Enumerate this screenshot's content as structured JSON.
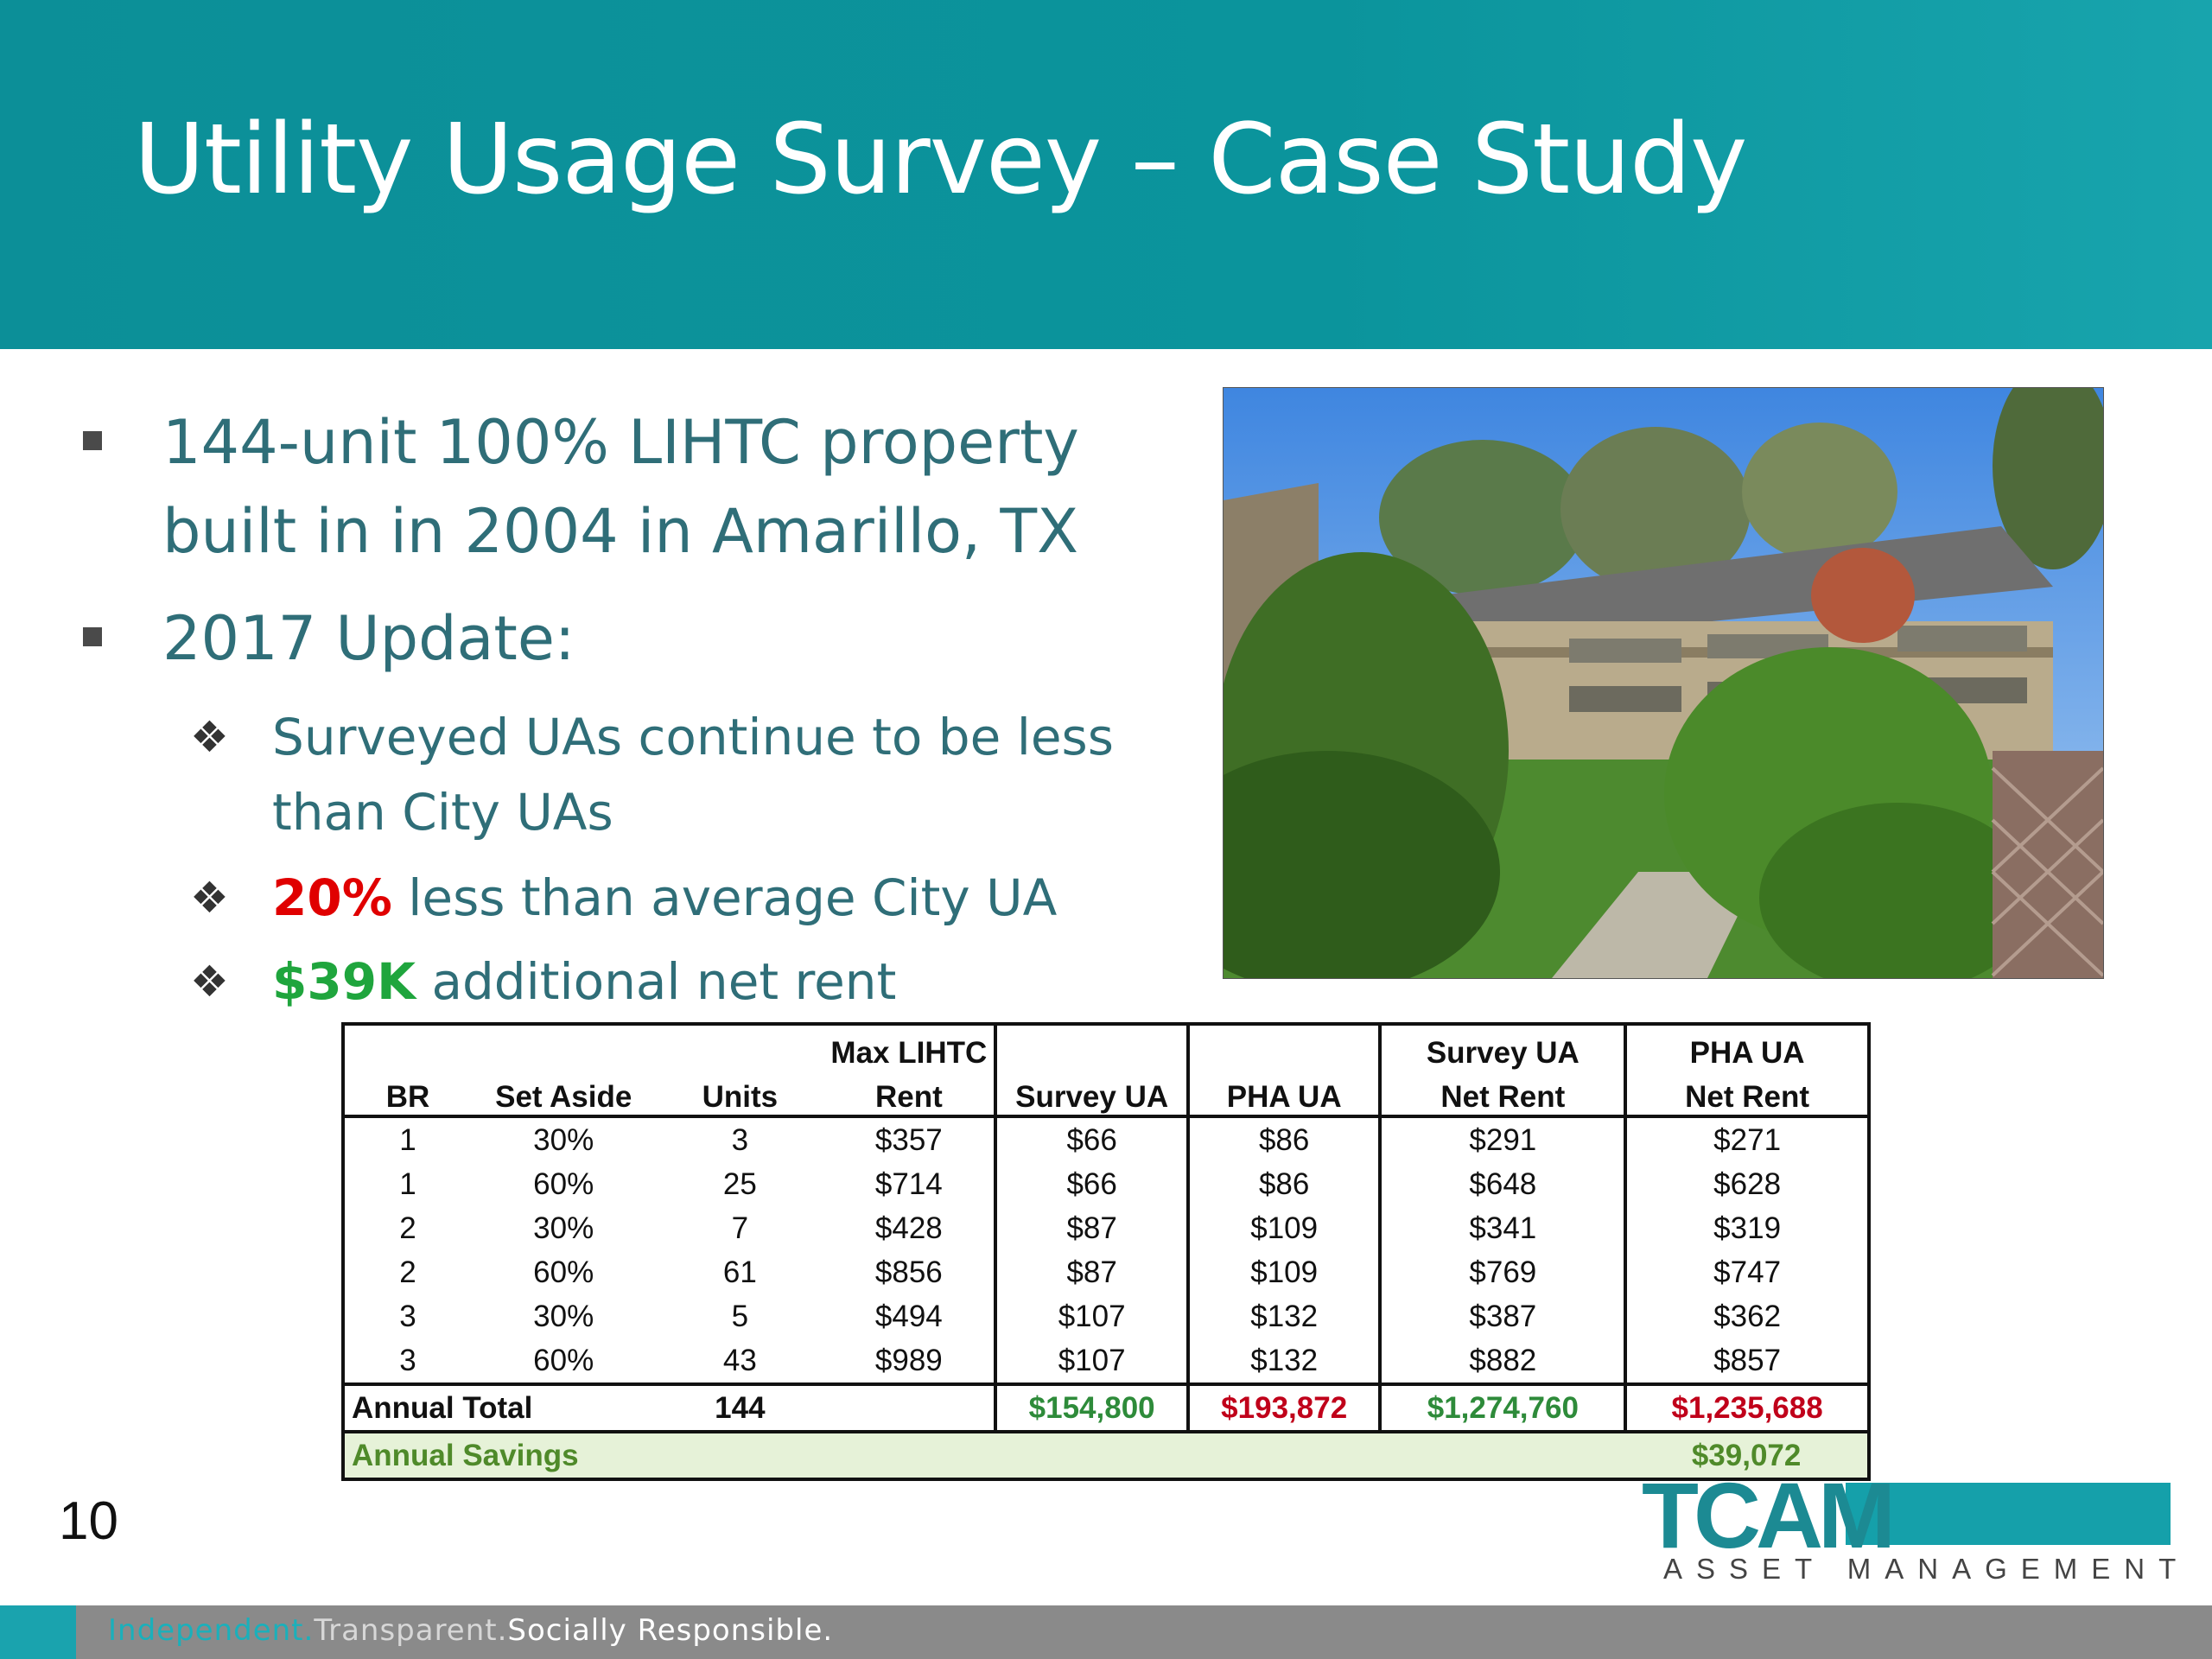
{
  "slide": {
    "title": "Utility Usage Survey – Case Study",
    "page_number": "10"
  },
  "bullets": {
    "b1_line1": "144-unit 100% LIHTC property",
    "b1_line2": "built in in 2004 in Amarillo, TX",
    "b2": "2017 Update:",
    "sub1_line1": "Surveyed UAs continue to be less",
    "sub1_line2": "than City UAs",
    "sub2_highlight": "20%",
    "sub2_rest": " less than average City UA",
    "sub3_highlight": "$39K",
    "sub3_rest": " additional net rent"
  },
  "table": {
    "headers": {
      "br": "BR",
      "set_aside": "Set Aside",
      "units": "Units",
      "max_lihtc_1": "Max LIHTC",
      "max_lihtc_2": "Rent",
      "survey_ua": "Survey UA",
      "pha_ua": "PHA UA",
      "survey_net_1": "Survey UA",
      "survey_net_2": "Net Rent",
      "pha_net_1": "PHA UA",
      "pha_net_2": "Net Rent"
    },
    "rows": [
      [
        "1",
        "30%",
        "3",
        "$357",
        "$66",
        "$86",
        "$291",
        "$271"
      ],
      [
        "1",
        "60%",
        "25",
        "$714",
        "$66",
        "$86",
        "$648",
        "$628"
      ],
      [
        "2",
        "30%",
        "7",
        "$428",
        "$87",
        "$109",
        "$341",
        "$319"
      ],
      [
        "2",
        "60%",
        "61",
        "$856",
        "$87",
        "$109",
        "$769",
        "$747"
      ],
      [
        "3",
        "30%",
        "5",
        "$494",
        "$107",
        "$132",
        "$387",
        "$362"
      ],
      [
        "3",
        "60%",
        "43",
        "$989",
        "$107",
        "$132",
        "$882",
        "$857"
      ]
    ],
    "total": {
      "label": "Annual Total",
      "units": "144",
      "survey_ua": "$154,800",
      "pha_ua": "$193,872",
      "survey_net": "$1,274,760",
      "pha_net": "$1,235,688"
    },
    "savings": {
      "label": "Annual Savings",
      "value": "$39,072"
    }
  },
  "logo": {
    "name": "TCAM",
    "sub": "ASSET MANAGEMENT"
  },
  "footer": {
    "part1": "Independent.",
    "part2": "Transparent.",
    "part3": "Socially Responsible."
  },
  "colors": {
    "header_teal": "#0c8f98",
    "body_text": "#2f6e78",
    "highlight_red": "#e00000",
    "highlight_green": "#1fa53d"
  }
}
